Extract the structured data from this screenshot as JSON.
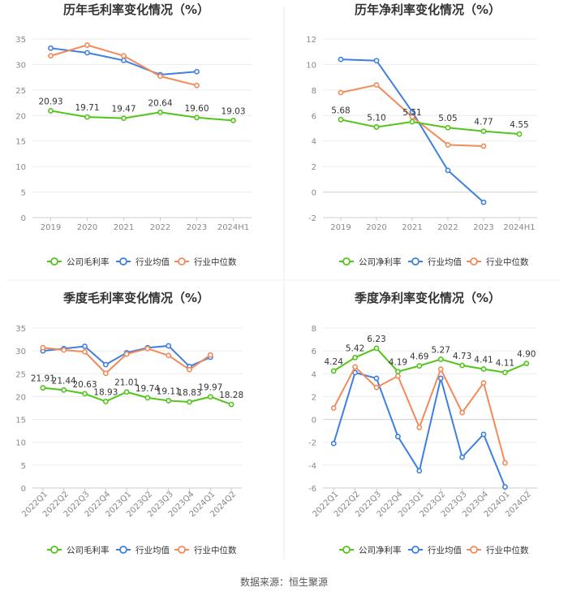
{
  "source_text": "数据来源：恒生聚源",
  "legend_icon": "circle-line-marker",
  "chart_data": [
    {
      "type": "line",
      "title": "历年毛利率变化情况（%）",
      "categories": [
        "2019",
        "2020",
        "2021",
        "2022",
        "2023",
        "2024H1"
      ],
      "ylim": [
        0,
        35
      ],
      "yticks": [
        0,
        5,
        10,
        15,
        20,
        25,
        30,
        35
      ],
      "series": [
        {
          "name": "公司毛利率",
          "color": "#52c41a",
          "values": [
            20.93,
            19.71,
            19.47,
            20.64,
            19.6,
            19.03
          ],
          "labels": [
            "20.93",
            "19.71",
            "19.47",
            "20.64",
            "19.60",
            "19.03"
          ]
        },
        {
          "name": "行业均值",
          "color": "#3f7fe0",
          "values": [
            33.2,
            32.3,
            30.8,
            28.0,
            28.6,
            null
          ]
        },
        {
          "name": "行业中位数",
          "color": "#f28a5a",
          "values": [
            31.7,
            33.8,
            31.7,
            27.7,
            25.9,
            null
          ]
        }
      ]
    },
    {
      "type": "line",
      "title": "历年净利率变化情况（%）",
      "categories": [
        "2019",
        "2020",
        "2021",
        "2022",
        "2023",
        "2024H1"
      ],
      "ylim": [
        -2,
        12
      ],
      "yticks": [
        -2,
        0,
        2,
        4,
        6,
        8,
        10,
        12
      ],
      "series": [
        {
          "name": "公司净利率",
          "color": "#52c41a",
          "values": [
            5.68,
            5.1,
            5.51,
            5.05,
            4.77,
            4.55
          ],
          "labels": [
            "5.68",
            "5.10",
            "5.51",
            "5.05",
            "4.77",
            "4.55"
          ]
        },
        {
          "name": "行业均值",
          "color": "#3f7fe0",
          "values": [
            10.4,
            10.3,
            6.3,
            1.7,
            -0.8,
            null
          ]
        },
        {
          "name": "行业中位数",
          "color": "#f28a5a",
          "values": [
            7.8,
            8.4,
            5.9,
            3.7,
            3.6,
            null
          ]
        }
      ]
    },
    {
      "type": "line",
      "title": "季度毛利率变化情况（%）",
      "categories": [
        "2022Q1",
        "2022Q2",
        "2022Q3",
        "2022Q4",
        "2023Q1",
        "2023Q2",
        "2023Q3",
        "2023Q4",
        "2024Q1",
        "2024Q2"
      ],
      "ylim": [
        0,
        35
      ],
      "yticks": [
        0,
        5,
        10,
        15,
        20,
        25,
        30,
        35
      ],
      "series": [
        {
          "name": "公司毛利率",
          "color": "#52c41a",
          "values": [
            21.91,
            21.44,
            20.63,
            18.93,
            21.01,
            19.74,
            19.11,
            18.83,
            19.97,
            18.28
          ],
          "labels": [
            "21.91",
            "21.44",
            "20.63",
            "18.93",
            "21.01",
            "19.74",
            "19.11",
            "18.83",
            "19.97",
            "18.28"
          ]
        },
        {
          "name": "行业均值",
          "color": "#3f7fe0",
          "values": [
            30.0,
            30.5,
            31.0,
            27.0,
            29.6,
            30.7,
            31.1,
            26.6,
            28.6,
            null
          ]
        },
        {
          "name": "行业中位数",
          "color": "#f28a5a",
          "values": [
            30.7,
            30.2,
            29.8,
            25.1,
            29.3,
            30.5,
            29.0,
            25.9,
            29.1,
            null
          ]
        }
      ]
    },
    {
      "type": "line",
      "title": "季度净利率变化情况（%）",
      "categories": [
        "2022Q1",
        "2022Q2",
        "2022Q3",
        "2022Q4",
        "2023Q1",
        "2023Q2",
        "2023Q3",
        "2023Q4",
        "2024Q1",
        "2024Q2"
      ],
      "ylim": [
        -6,
        8
      ],
      "yticks": [
        -6,
        -4,
        -2,
        0,
        2,
        4,
        6,
        8
      ],
      "series": [
        {
          "name": "公司净利率",
          "color": "#52c41a",
          "values": [
            4.24,
            5.42,
            6.23,
            4.19,
            4.69,
            5.27,
            4.73,
            4.41,
            4.11,
            4.9
          ],
          "labels": [
            "4.24",
            "5.42",
            "6.23",
            "4.19",
            "4.69",
            "5.27",
            "4.73",
            "4.41",
            "4.11",
            "4.90"
          ]
        },
        {
          "name": "行业均值",
          "color": "#3f7fe0",
          "values": [
            -2.1,
            4.1,
            3.6,
            -1.5,
            -4.5,
            3.6,
            -3.3,
            -1.3,
            -5.9,
            null
          ]
        },
        {
          "name": "行业中位数",
          "color": "#f28a5a",
          "values": [
            1.0,
            4.6,
            2.8,
            3.8,
            -0.7,
            4.4,
            0.6,
            3.2,
            -3.8,
            null
          ]
        }
      ]
    }
  ]
}
